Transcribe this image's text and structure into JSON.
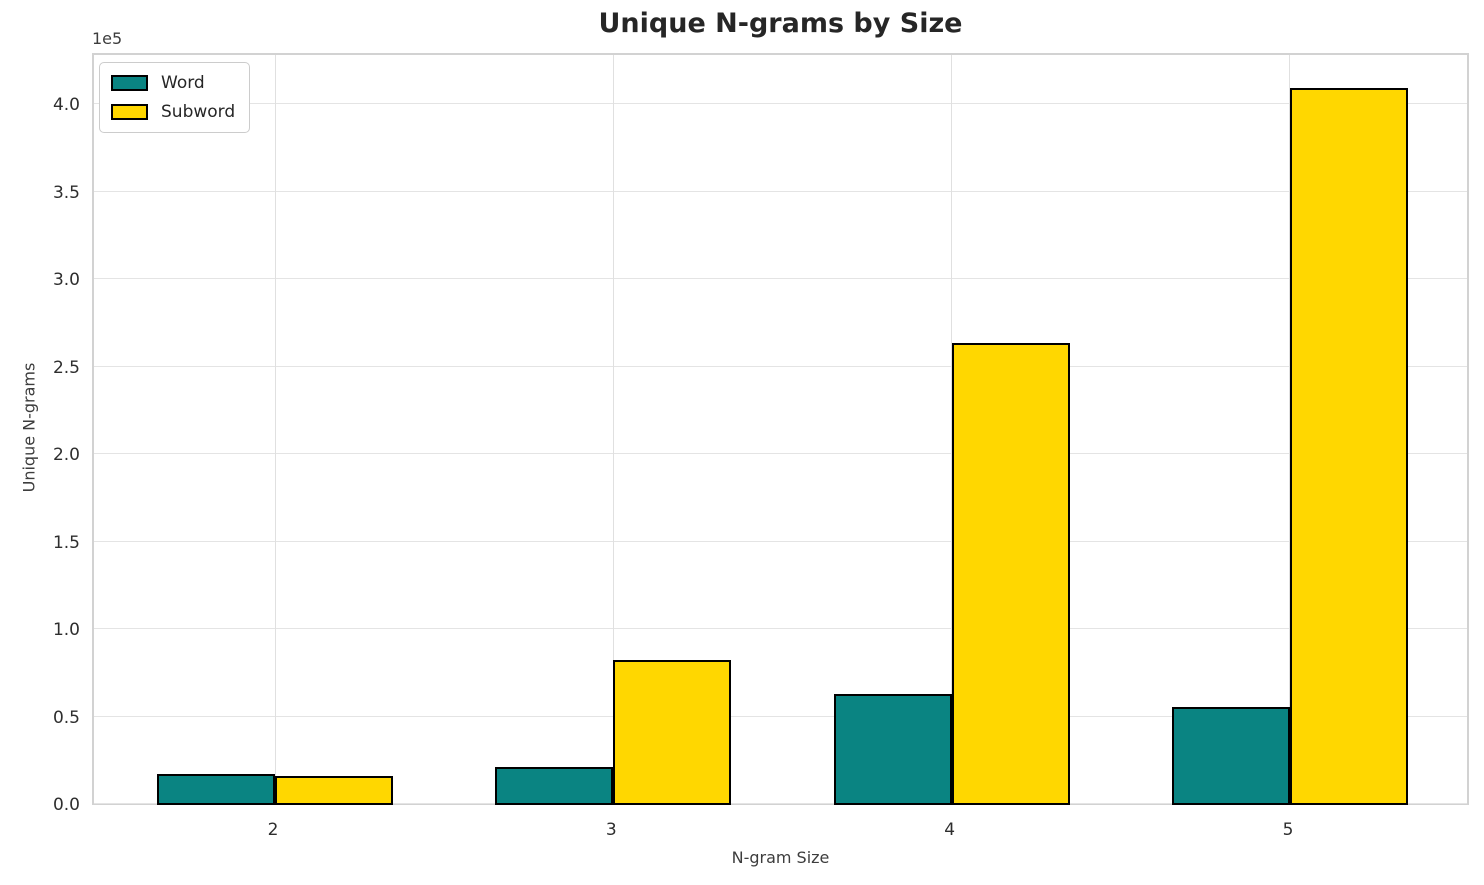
{
  "colors": {
    "word": "#0a8482",
    "subword": "#ffd700",
    "bar_edge": "#000000",
    "grid": "#e4e4e4",
    "spine": "#d2d2d2",
    "title_text": "#262626",
    "tick_text": "#2e2e2e"
  },
  "chart_data": {
    "type": "bar",
    "title": "Unique N-grams by Size",
    "xlabel": "N-gram Size",
    "ylabel": "Unique N-grams",
    "y_offset_text": "1e5",
    "categories": [
      "2",
      "3",
      "4",
      "5"
    ],
    "series": [
      {
        "name": "Word",
        "color": "#0a8482",
        "values": [
          18000,
          22000,
          63500,
          56000
        ]
      },
      {
        "name": "Subword",
        "color": "#ffd700",
        "values": [
          16500,
          83000,
          264000,
          410000
        ]
      }
    ],
    "ylim": [
      0,
      430000
    ],
    "yticks": [
      0,
      50000,
      100000,
      150000,
      200000,
      250000,
      300000,
      350000,
      400000
    ],
    "ytick_labels": [
      "0.0",
      "0.5",
      "1.0",
      "1.5",
      "2.0",
      "2.5",
      "3.0",
      "3.5",
      "4.0"
    ],
    "grid": true,
    "legend_position": "upper left",
    "bar_width_ratio": 0.35
  }
}
